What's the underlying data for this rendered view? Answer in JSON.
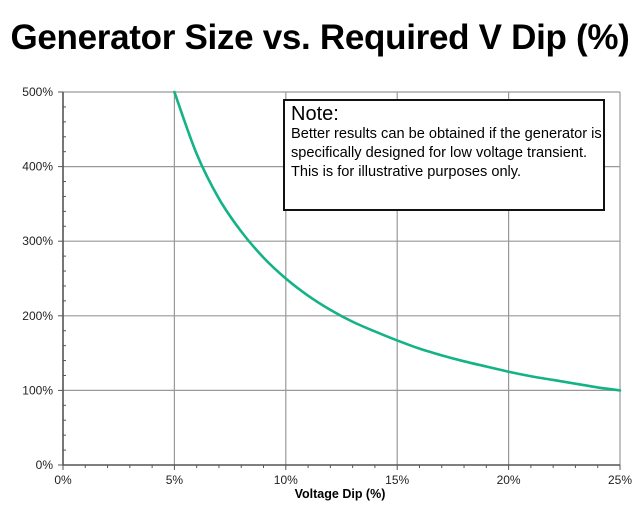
{
  "title": "Generator Size vs. Required V Dip (%)",
  "note": {
    "heading": "Note:",
    "body": "Better results can be obtained if the generator is specifically designed for low voltage transient.  This is for illustrative purposes only."
  },
  "colors": {
    "curve": "#14b386",
    "grid": "#999999",
    "axis": "#555555"
  },
  "chart_data": {
    "type": "line",
    "title": "Generator Size vs. Required V Dip (%)",
    "xlabel": "Voltage Dip (%)",
    "ylabel": "",
    "xlim": [
      0,
      25
    ],
    "ylim": [
      0,
      500
    ],
    "x_tick_labels": [
      "0%",
      "5%",
      "10%",
      "15%",
      "20%",
      "25%"
    ],
    "y_tick_labels": [
      "0%",
      "100%",
      "200%",
      "300%",
      "400%",
      "500%"
    ],
    "grid": true,
    "legend": null,
    "series": [
      {
        "name": "Generator Size",
        "x": [
          5,
          6,
          7,
          8,
          9,
          10,
          11,
          12,
          13,
          14,
          15,
          16,
          17,
          18,
          19,
          20,
          21,
          22,
          23,
          24,
          25
        ],
        "values": [
          500,
          417,
          357,
          313,
          278,
          250,
          227,
          208,
          192,
          179,
          167,
          156,
          147,
          139,
          132,
          125,
          119,
          114,
          109,
          104,
          100
        ]
      }
    ],
    "annotations": [
      "Note: Better results can be obtained if the generator is specifically designed for low voltage transient.  This is for illustrative purposes only."
    ]
  }
}
